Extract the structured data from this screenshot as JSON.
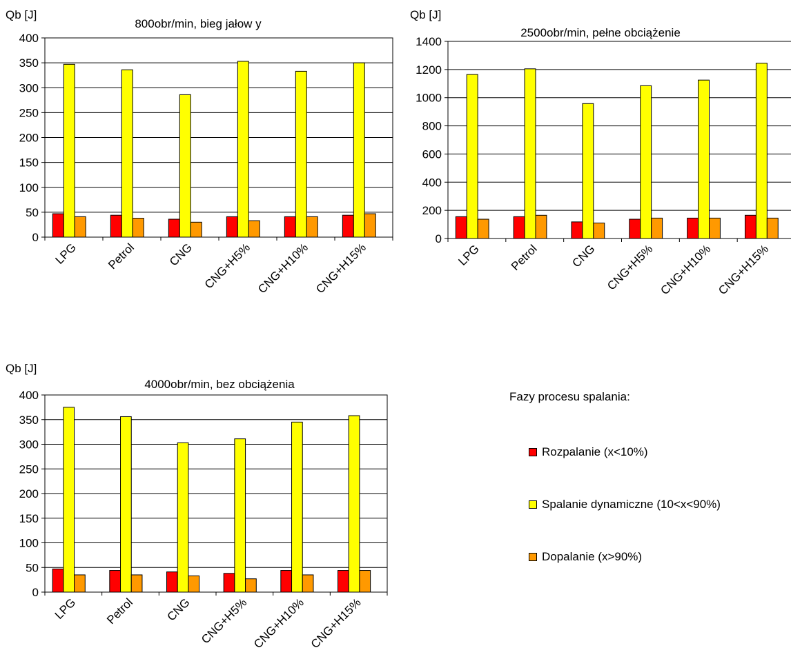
{
  "chart_data": [
    {
      "type": "bar",
      "title": "800obr/min, bieg jałow y",
      "ylabel": "Qb [J]",
      "xlabel": "",
      "ylim": [
        0,
        400
      ],
      "yticks": [
        0,
        50,
        100,
        150,
        200,
        250,
        300,
        350,
        400
      ],
      "categories": [
        "LPG",
        "Petrol",
        "CNG",
        "CNG+H5%",
        "CNG+H10%",
        "CNG+H15%"
      ],
      "series": [
        {
          "name": "Rozpalanie (x<10%)",
          "values": [
            47,
            44,
            36,
            41,
            41,
            44
          ]
        },
        {
          "name": "Spalanie dynamiczne (10<x<90%)",
          "values": [
            347,
            336,
            286,
            353,
            333,
            350
          ]
        },
        {
          "name": "Dopalanie (x>90%)",
          "values": [
            41,
            38,
            30,
            33,
            41,
            47
          ]
        }
      ]
    },
    {
      "type": "bar",
      "title": "2500obr/min, pełne obciążenie",
      "ylabel": "Qb [J]",
      "xlabel": "",
      "ylim": [
        0,
        1400
      ],
      "yticks": [
        0,
        200,
        400,
        600,
        800,
        1000,
        1200,
        1400
      ],
      "categories": [
        "LPG",
        "Petrol",
        "CNG",
        "CNG+H5%",
        "CNG+H10%",
        "CNG+H15%"
      ],
      "series": [
        {
          "name": "Rozpalanie (x<10%)",
          "values": [
            155,
            155,
            118,
            137,
            145,
            165
          ]
        },
        {
          "name": "Spalanie dynamiczne (10<x<90%)",
          "values": [
            1165,
            1205,
            958,
            1085,
            1125,
            1245
          ]
        },
        {
          "name": "Dopalanie (x>90%)",
          "values": [
            137,
            165,
            110,
            145,
            145,
            145
          ]
        }
      ]
    },
    {
      "type": "bar",
      "title": "4000obr/min, bez obciążenia",
      "ylabel": "Qb [J]",
      "xlabel": "",
      "ylim": [
        0,
        400
      ],
      "yticks": [
        0,
        50,
        100,
        150,
        200,
        250,
        300,
        350,
        400
      ],
      "categories": [
        "LPG",
        "Petrol",
        "CNG",
        "CNG+H5%",
        "CNG+H10%",
        "CNG+H15%"
      ],
      "series": [
        {
          "name": "Rozpalanie (x<10%)",
          "values": [
            47,
            44,
            41,
            38,
            44,
            44
          ]
        },
        {
          "name": "Spalanie dynamiczne (10<x<90%)",
          "values": [
            375,
            356,
            303,
            311,
            345,
            358
          ]
        },
        {
          "name": "Dopalanie (x>90%)",
          "values": [
            35,
            35,
            33,
            27,
            35,
            44
          ]
        }
      ]
    }
  ],
  "legend": {
    "heading": "Fazy procesu spalania:",
    "items": [
      {
        "label": "Rozpalanie (x<10%)",
        "color": "#ff0000"
      },
      {
        "label": "Spalanie dynamiczne (10<x<90%)",
        "color": "#ffff00"
      },
      {
        "label": "Dopalanie (x>90%)",
        "color": "#ff9900"
      }
    ]
  },
  "colors": {
    "series": [
      "#ff0000",
      "#ffff00",
      "#ff9900"
    ],
    "grid": "#000000",
    "axis": "#000000"
  }
}
